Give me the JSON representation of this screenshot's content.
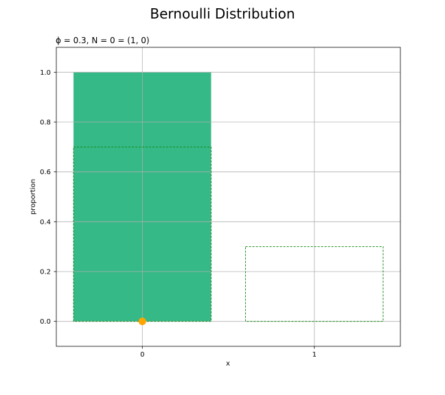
{
  "figure_title": "Bernoulli Distribution",
  "chart_data": {
    "type": "bar",
    "title": "ϕ = 0.3, N = 0 = (1, 0)",
    "xlabel": "x",
    "ylabel": "proportion",
    "categories": [
      "0",
      "1"
    ],
    "x": [
      0,
      1
    ],
    "series": [
      {
        "values": [
          1.0,
          0.0
        ],
        "style": "filled",
        "color": "#34b987"
      },
      {
        "values": [
          0.7,
          0.3
        ],
        "style": "dashed-outline",
        "color": "#1a8a1a"
      }
    ],
    "points": [
      {
        "x": 0,
        "y": 0.0,
        "color": "#ffa500"
      }
    ],
    "xlim": [
      -0.5,
      1.5
    ],
    "ylim": [
      -0.1,
      1.1
    ],
    "yticks": [
      "0.0",
      "0.2",
      "0.4",
      "0.6",
      "0.8",
      "1.0"
    ],
    "xticks": [
      "0",
      "1"
    ],
    "bar_width": 0.8,
    "grid": true
  }
}
